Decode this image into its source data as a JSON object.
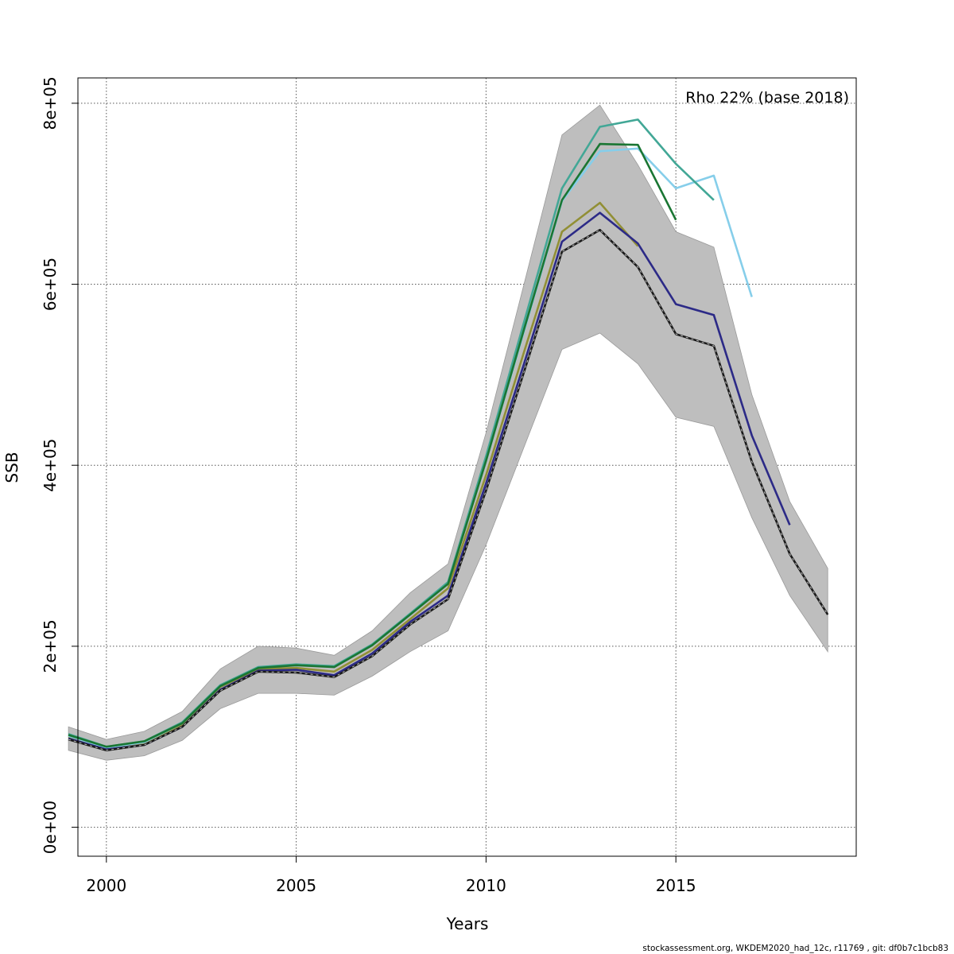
{
  "chart_data": {
    "type": "line",
    "title": "",
    "xlabel": "Years",
    "ylabel": "SSB",
    "annotation": "Rho 22% (base 2018)",
    "footer": "stockassessment.org, WKDEM2020_had_12c, r11769 , git: df0b7c1bcb83",
    "xlim": [
      1999.25,
      2019.75
    ],
    "ylim": [
      -32000,
      828000
    ],
    "x_ticks": [
      2000,
      2005,
      2010,
      2015
    ],
    "x_tick_labels": [
      "2000",
      "2005",
      "2010",
      "2015"
    ],
    "y_ticks": [
      0,
      200000,
      400000,
      600000,
      800000
    ],
    "y_tick_labels": [
      "0e+00",
      "2e+05",
      "4e+05",
      "6e+05",
      "8e+05"
    ],
    "grid": true,
    "colors": {
      "band": "#bebebe",
      "base": "#1a1a1a",
      "peel_2017": "#2c2a87",
      "peel_2016": "#86ceea",
      "peel_2015": "#42a796",
      "peel_2014": "#1a7633",
      "peel_2013": "#918f35"
    },
    "confidence_band": {
      "x": [
        1999,
        2000,
        2001,
        2002,
        2003,
        2004,
        2005,
        2006,
        2007,
        2008,
        2009,
        2010,
        2011,
        2012,
        2013,
        2014,
        2015,
        2016,
        2017,
        2018,
        2019
      ],
      "lower": [
        85000,
        74000,
        79000,
        96000,
        131000,
        148000,
        148000,
        146000,
        167000,
        194000,
        217000,
        312000,
        420000,
        528000,
        546000,
        512000,
        453000,
        443000,
        342000,
        256000,
        194000
      ],
      "upper": [
        111000,
        97000,
        106000,
        128000,
        175000,
        200000,
        198000,
        190000,
        217000,
        259000,
        291000,
        436000,
        600000,
        765000,
        798000,
        732000,
        658000,
        641000,
        478000,
        360000,
        286000
      ]
    },
    "series": [
      {
        "key": "peel_2013",
        "dashed": false,
        "x": [
          1999,
          2000,
          2001,
          2002,
          2003,
          2004,
          2005,
          2006,
          2007,
          2008,
          2009,
          2010,
          2011,
          2012,
          2013,
          2014
        ],
        "values": [
          100000,
          87000,
          93000,
          113000,
          155000,
          175000,
          176000,
          172000,
          196000,
          230000,
          264000,
          389000,
          525000,
          658000,
          690000,
          642000
        ]
      },
      {
        "key": "peel_2016",
        "dashed": false,
        "x": [
          1999,
          2000,
          2001,
          2002,
          2003,
          2004,
          2005,
          2006,
          2007,
          2008,
          2009,
          2010,
          2011,
          2012,
          2013,
          2014,
          2015,
          2016,
          2017
        ],
        "values": [
          101000,
          88000,
          94000,
          115000,
          156000,
          177000,
          179000,
          178000,
          201000,
          236000,
          270000,
          405000,
          548000,
          692000,
          747000,
          750000,
          706000,
          720000,
          586000
        ]
      },
      {
        "key": "peel_2015",
        "dashed": false,
        "x": [
          1999,
          2000,
          2001,
          2002,
          2003,
          2004,
          2005,
          2006,
          2007,
          2008,
          2009,
          2010,
          2011,
          2012,
          2013,
          2014,
          2015,
          2016
        ],
        "values": [
          103000,
          89000,
          95000,
          116000,
          157000,
          177000,
          180000,
          178000,
          202000,
          236000,
          271000,
          410000,
          558000,
          706000,
          774000,
          782000,
          733000,
          693000
        ]
      },
      {
        "key": "peel_2014",
        "dashed": false,
        "x": [
          1999,
          2000,
          2001,
          2002,
          2003,
          2004,
          2005,
          2006,
          2007,
          2008,
          2009,
          2010,
          2011,
          2012,
          2013,
          2014,
          2015
        ],
        "values": [
          102000,
          89000,
          95000,
          115000,
          156000,
          176000,
          179000,
          177000,
          201000,
          235000,
          269000,
          405000,
          550000,
          693000,
          755000,
          754000,
          671000
        ]
      },
      {
        "key": "peel_2017",
        "dashed": false,
        "x": [
          1999,
          2000,
          2001,
          2002,
          2003,
          2004,
          2005,
          2006,
          2007,
          2008,
          2009,
          2010,
          2011,
          2012,
          2013,
          2014,
          2015,
          2016,
          2017,
          2018
        ],
        "values": [
          98000,
          86000,
          91000,
          111000,
          152000,
          173000,
          174000,
          168000,
          192000,
          227000,
          256000,
          380000,
          512000,
          647000,
          679000,
          645000,
          578000,
          566000,
          433000,
          334000
        ]
      },
      {
        "key": "base",
        "dashed": true,
        "x": [
          1999,
          2000,
          2001,
          2002,
          2003,
          2004,
          2005,
          2006,
          2007,
          2008,
          2009,
          2010,
          2011,
          2012,
          2013,
          2014,
          2015,
          2016,
          2017,
          2018,
          2019
        ],
        "values": [
          97000,
          85000,
          91000,
          111000,
          151000,
          172000,
          171000,
          166000,
          189000,
          224000,
          252000,
          372000,
          503000,
          636000,
          660000,
          619000,
          545000,
          532000,
          404000,
          302000,
          235000
        ]
      }
    ]
  }
}
